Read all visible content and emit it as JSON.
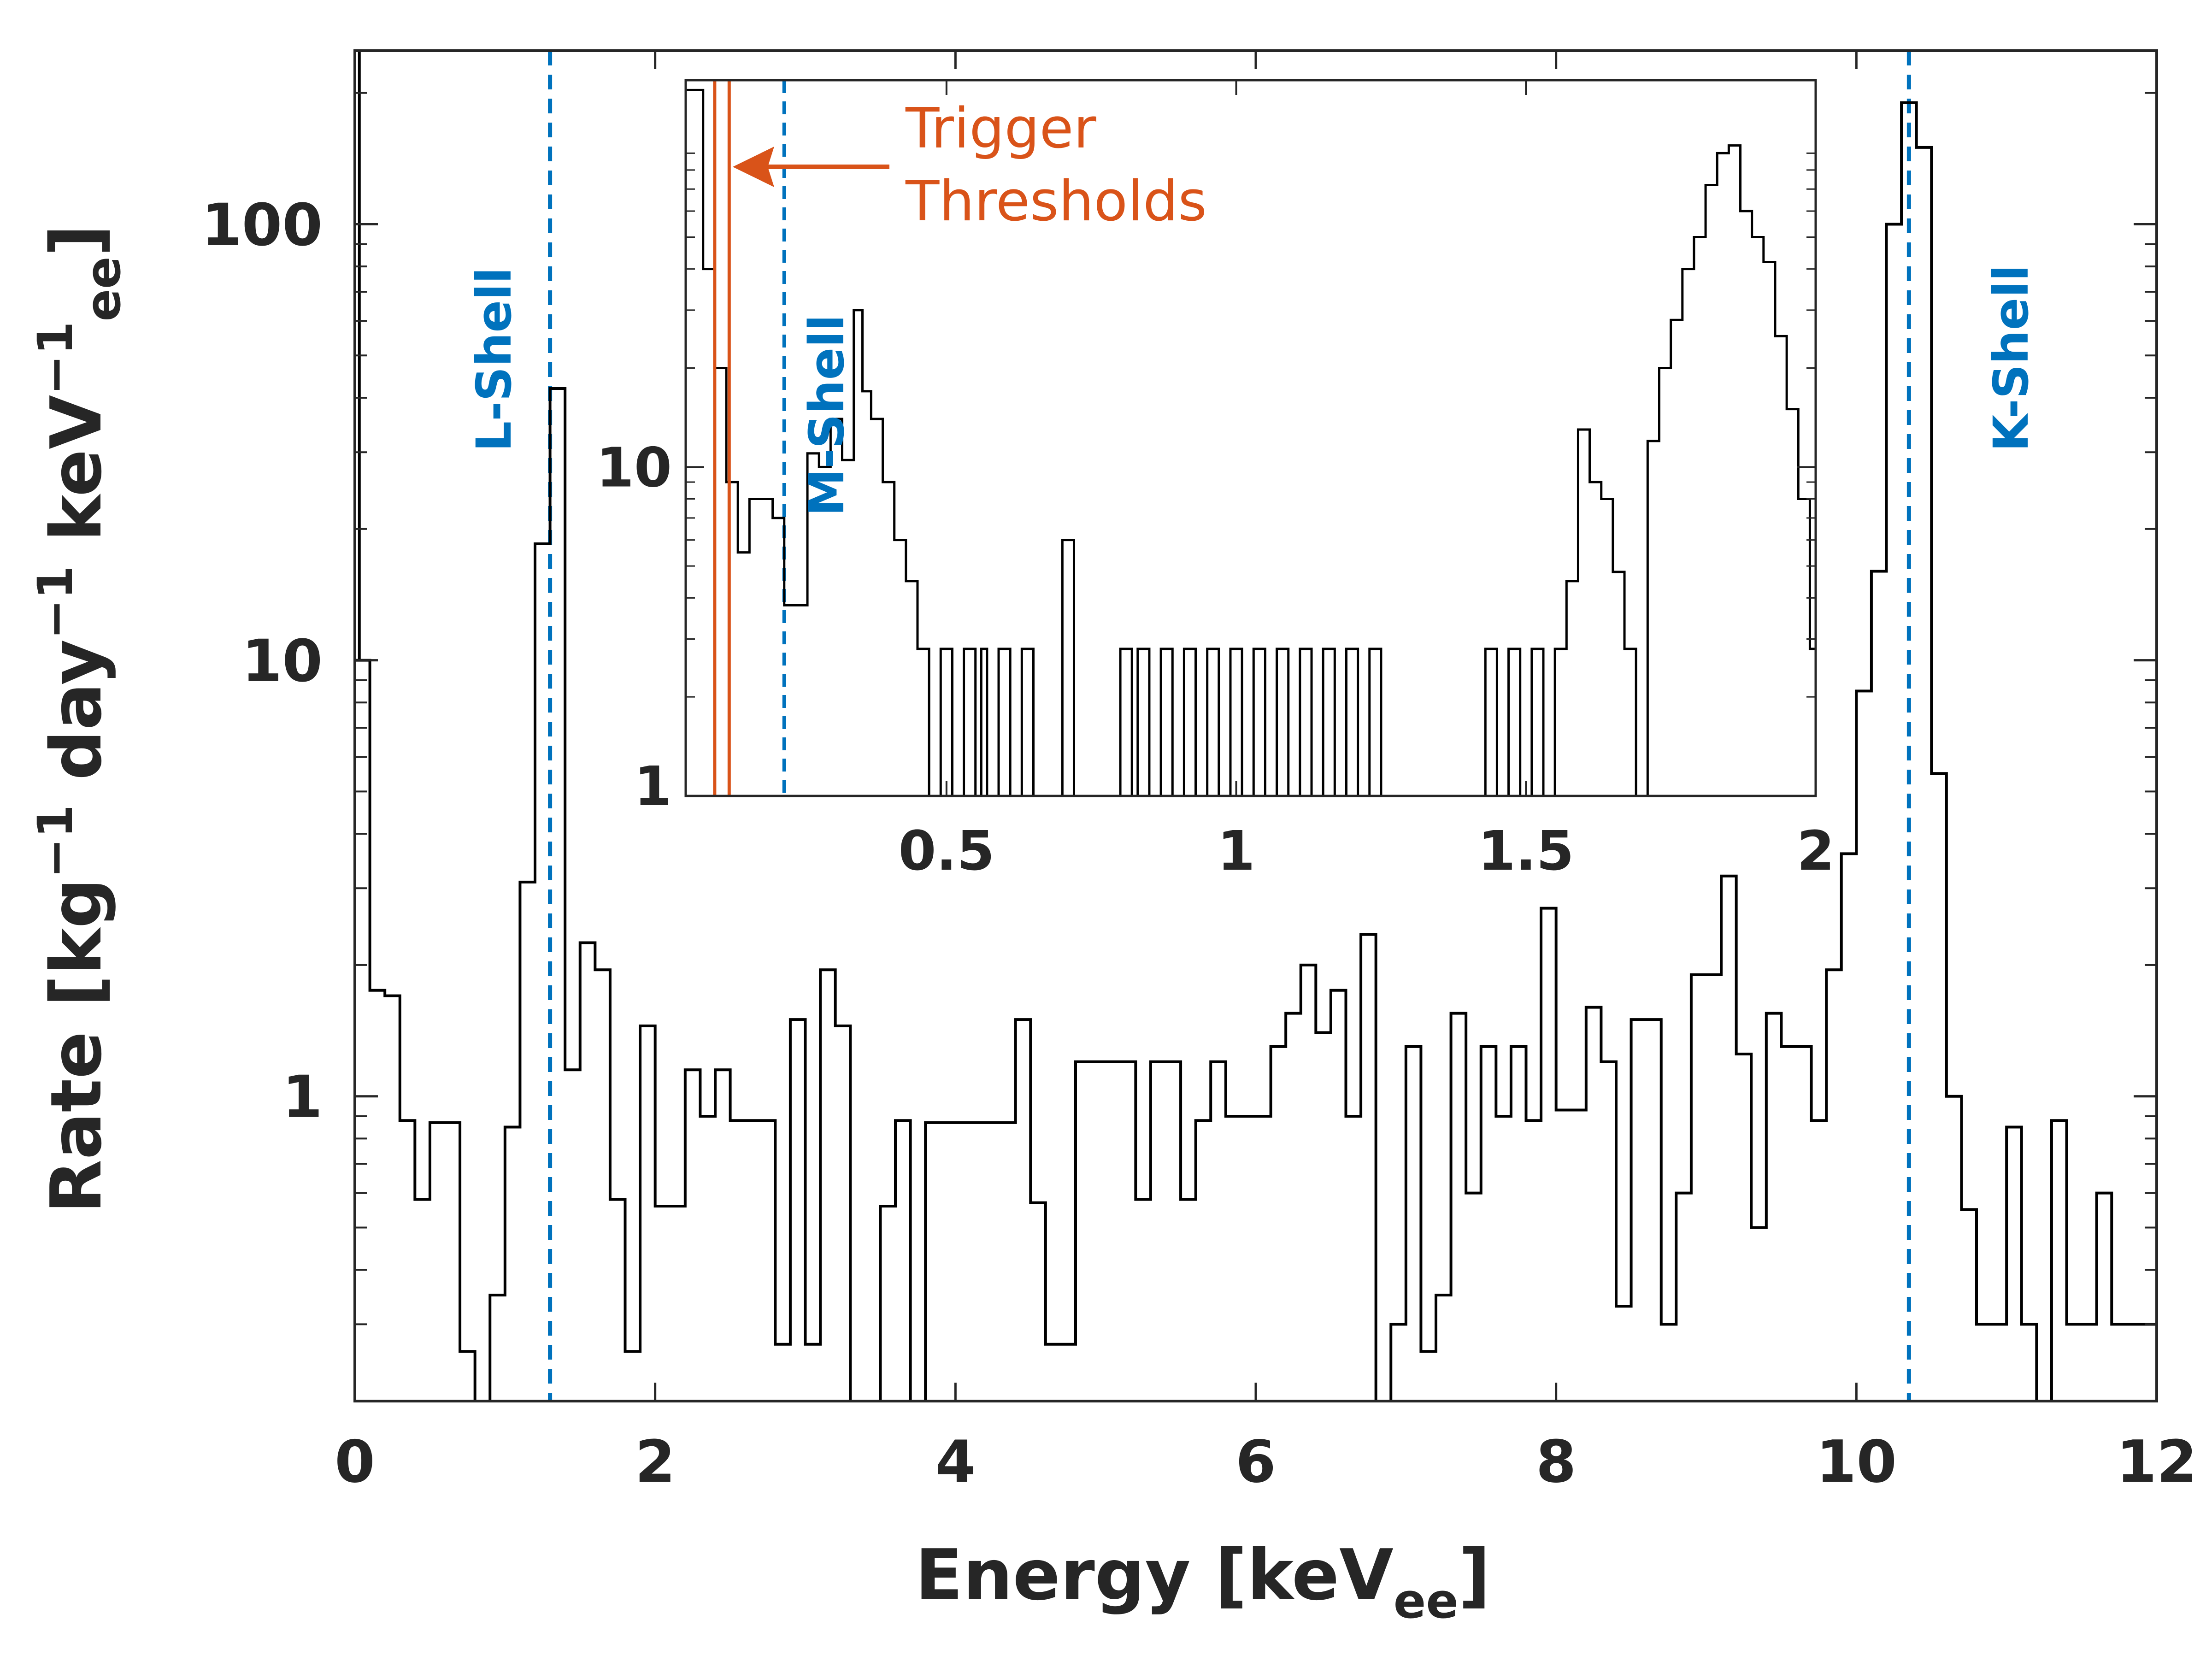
{
  "chart_data": [
    {
      "type": "line",
      "step": true,
      "xlabel": "Energy [keVee]",
      "xlabel_parts": {
        "main": "Energy [keV",
        "sub": "ee",
        "close": "]"
      },
      "ylabel": "Rate [kg⁻¹ day⁻¹ keVee⁻¹]",
      "ylabel_parts": {
        "t1": "Rate [kg",
        "s1": "−1",
        "t2": " day",
        "s2": "−1",
        "t3": " keV",
        "s3": "−1",
        "sub": "ee",
        "t4": "]"
      },
      "xlim": [
        0,
        12
      ],
      "ylim": [
        0.2,
        250
      ],
      "yscale": "log",
      "xticks": [
        0,
        2,
        4,
        6,
        8,
        10,
        12
      ],
      "yticks": [
        1,
        10,
        100
      ],
      "grid": false,
      "series_style": {
        "color": "#000000"
      },
      "bin_edges": [
        0,
        0.1,
        0.2,
        0.3,
        0.4,
        0.5,
        0.6,
        0.7,
        0.8,
        0.9,
        1.0,
        1.1,
        1.2,
        1.3,
        1.4,
        1.5,
        1.6,
        1.7,
        1.8,
        1.9,
        2.0,
        2.1,
        2.2,
        2.3,
        2.4,
        2.5,
        2.6,
        2.7,
        2.8,
        2.9,
        3.0,
        3.1,
        3.2,
        3.3,
        3.4,
        3.5,
        3.6,
        3.7,
        3.8,
        3.9,
        4.0,
        4.1,
        4.2,
        4.3,
        4.4,
        4.5,
        4.6,
        4.7,
        4.8,
        4.9,
        5.0,
        5.1,
        5.2,
        5.3,
        5.4,
        5.5,
        5.6,
        5.7,
        5.8,
        5.9,
        6.0,
        6.1,
        6.2,
        6.3,
        6.4,
        6.5,
        6.6,
        6.7,
        6.8,
        6.9,
        7.0,
        7.1,
        7.2,
        7.3,
        7.4,
        7.5,
        7.6,
        7.7,
        7.8,
        7.9,
        8.0,
        8.1,
        8.2,
        8.3,
        8.4,
        8.5,
        8.6,
        8.7,
        8.8,
        8.9,
        9.0,
        9.1,
        9.2,
        9.3,
        9.4,
        9.5,
        9.6,
        9.7,
        9.8,
        9.9,
        10.0,
        10.1,
        10.2,
        10.3,
        10.4,
        10.5,
        10.6,
        10.7,
        10.8,
        10.9,
        11.0,
        11.1,
        11.2,
        11.3,
        11.4,
        11.5,
        11.6,
        11.7,
        11.8,
        11.9,
        12.0
      ],
      "values": [
        10,
        1.75,
        1.7,
        0.88,
        0.58,
        0.87,
        0.87,
        0.26,
        0.12,
        0.35,
        0.85,
        3.1,
        18.5,
        42,
        1.15,
        2.25,
        1.95,
        0.58,
        0.26,
        1.45,
        0.56,
        0.56,
        1.15,
        0.9,
        1.15,
        0.88,
        0.88,
        0.88,
        0.27,
        1.5,
        0.27,
        1.95,
        1.45,
        0.1,
        0.1,
        0.56,
        0.88,
        0.1,
        0.87,
        0.87,
        0.87,
        0.87,
        0.87,
        0.87,
        1.5,
        0.57,
        0.27,
        0.27,
        1.2,
        1.2,
        1.2,
        1.2,
        0.58,
        1.2,
        1.2,
        0.58,
        0.88,
        1.2,
        0.9,
        0.9,
        0.9,
        1.3,
        1.55,
        2.0,
        1.4,
        1.75,
        0.9,
        2.35,
        0.1,
        0.3,
        1.3,
        0.26,
        0.35,
        1.55,
        0.6,
        1.3,
        0.9,
        1.3,
        0.88,
        2.7,
        0.93,
        0.93,
        1.6,
        1.2,
        0.33,
        1.5,
        1.5,
        0.3,
        0.6,
        1.9,
        1.9,
        3.2,
        1.25,
        0.5,
        1.55,
        1.3,
        1.3,
        0.88,
        1.95,
        3.6,
        8.5,
        16,
        100,
        190,
        150,
        5.5,
        1.0,
        0.55,
        0.3,
        0.3,
        0.85,
        0.3,
        0.1,
        0.88,
        0.3,
        0.3,
        0.6,
        0.3,
        0.3,
        0.3
      ],
      "low_energy_rise": {
        "x": 0.03,
        "y": 250
      },
      "reference_lines": [
        {
          "label": "L-Shell",
          "x": 1.3,
          "color": "#0072bd",
          "style": "dashed"
        },
        {
          "label": "K-Shell",
          "x": 10.35,
          "color": "#0072bd",
          "style": "dashed"
        }
      ]
    },
    {
      "type": "line",
      "step": true,
      "inset": true,
      "xlim": [
        0.05,
        2
      ],
      "ylim": [
        1,
        150
      ],
      "yscale": "log",
      "xticks": [
        0.5,
        1,
        1.5,
        2
      ],
      "yticks": [
        1,
        10
      ],
      "series_style": {
        "color": "#000000"
      },
      "bins": [
        [
          0.05,
          0.08,
          140
        ],
        [
          0.08,
          0.1,
          40
        ],
        [
          0.1,
          0.12,
          20
        ],
        [
          0.12,
          0.14,
          9
        ],
        [
          0.14,
          0.16,
          5.5
        ],
        [
          0.16,
          0.18,
          8
        ],
        [
          0.18,
          0.2,
          8
        ],
        [
          0.2,
          0.22,
          7
        ],
        [
          0.22,
          0.24,
          3.8
        ],
        [
          0.24,
          0.26,
          3.8
        ],
        [
          0.26,
          0.28,
          11
        ],
        [
          0.28,
          0.3,
          10
        ],
        [
          0.3,
          0.32,
          14
        ],
        [
          0.32,
          0.34,
          10.5
        ],
        [
          0.34,
          0.355,
          30
        ],
        [
          0.355,
          0.37,
          17
        ],
        [
          0.37,
          0.39,
          14
        ],
        [
          0.39,
          0.41,
          9
        ],
        [
          0.41,
          0.43,
          6
        ],
        [
          0.43,
          0.45,
          4.5
        ],
        [
          0.45,
          0.47,
          2.8
        ],
        [
          0.47,
          0.49,
          1
        ],
        [
          0.49,
          0.51,
          2.8
        ],
        [
          0.51,
          0.53,
          1
        ],
        [
          0.53,
          0.55,
          2.8
        ],
        [
          0.55,
          0.56,
          1
        ],
        [
          0.56,
          0.57,
          2.8
        ],
        [
          0.57,
          0.59,
          1
        ],
        [
          0.59,
          0.61,
          2.8
        ],
        [
          0.61,
          0.63,
          1
        ],
        [
          0.63,
          0.65,
          2.8
        ],
        [
          0.65,
          0.7,
          1
        ],
        [
          0.7,
          0.72,
          6
        ],
        [
          0.72,
          0.74,
          1
        ],
        [
          0.74,
          0.8,
          1
        ],
        [
          0.8,
          0.82,
          2.8
        ],
        [
          0.82,
          0.83,
          1
        ],
        [
          0.83,
          0.85,
          2.8
        ],
        [
          0.85,
          0.87,
          1
        ],
        [
          0.87,
          0.89,
          2.8
        ],
        [
          0.89,
          0.91,
          1
        ],
        [
          0.91,
          0.93,
          2.8
        ],
        [
          0.93,
          0.95,
          1
        ],
        [
          0.95,
          0.97,
          2.8
        ],
        [
          0.97,
          0.99,
          1
        ],
        [
          0.99,
          1.01,
          2.8
        ],
        [
          1.01,
          1.03,
          1
        ],
        [
          1.03,
          1.05,
          2.8
        ],
        [
          1.05,
          1.07,
          1
        ],
        [
          1.07,
          1.09,
          2.8
        ],
        [
          1.09,
          1.11,
          1
        ],
        [
          1.11,
          1.13,
          2.8
        ],
        [
          1.13,
          1.15,
          1
        ],
        [
          1.15,
          1.17,
          2.8
        ],
        [
          1.17,
          1.19,
          1
        ],
        [
          1.19,
          1.21,
          2.8
        ],
        [
          1.21,
          1.23,
          1
        ],
        [
          1.23,
          1.25,
          2.8
        ],
        [
          1.25,
          1.43,
          1
        ],
        [
          1.43,
          1.45,
          2.8
        ],
        [
          1.45,
          1.47,
          1
        ],
        [
          1.47,
          1.49,
          2.8
        ],
        [
          1.49,
          1.51,
          1
        ],
        [
          1.51,
          1.53,
          2.8
        ],
        [
          1.53,
          1.55,
          1
        ],
        [
          1.55,
          1.57,
          2.8
        ],
        [
          1.57,
          1.59,
          4.5
        ],
        [
          1.59,
          1.61,
          13
        ],
        [
          1.61,
          1.63,
          9
        ],
        [
          1.63,
          1.65,
          8
        ],
        [
          1.65,
          1.67,
          4.8
        ],
        [
          1.67,
          1.69,
          2.8
        ],
        [
          1.69,
          1.71,
          1
        ],
        [
          1.71,
          1.73,
          12
        ],
        [
          1.73,
          1.75,
          20
        ],
        [
          1.75,
          1.77,
          28
        ],
        [
          1.77,
          1.79,
          40
        ],
        [
          1.79,
          1.81,
          50
        ],
        [
          1.81,
          1.83,
          72
        ],
        [
          1.83,
          1.85,
          90
        ],
        [
          1.85,
          1.87,
          95
        ],
        [
          1.87,
          1.89,
          60
        ],
        [
          1.89,
          1.91,
          50
        ],
        [
          1.91,
          1.93,
          42
        ],
        [
          1.93,
          1.95,
          25
        ],
        [
          1.95,
          1.97,
          15
        ],
        [
          1.97,
          1.99,
          8
        ],
        [
          1.99,
          2.0,
          2.8
        ]
      ],
      "reference_lines": [
        {
          "label": "M-Shell",
          "x": 0.22,
          "color": "#0072bd",
          "style": "dashed"
        }
      ],
      "threshold_lines": [
        {
          "x": 0.1,
          "color": "#d95319"
        },
        {
          "x": 0.125,
          "color": "#d95319"
        }
      ],
      "annotation": {
        "line1": "Trigger",
        "line2": "Thresholds",
        "color": "#d95319"
      }
    }
  ]
}
